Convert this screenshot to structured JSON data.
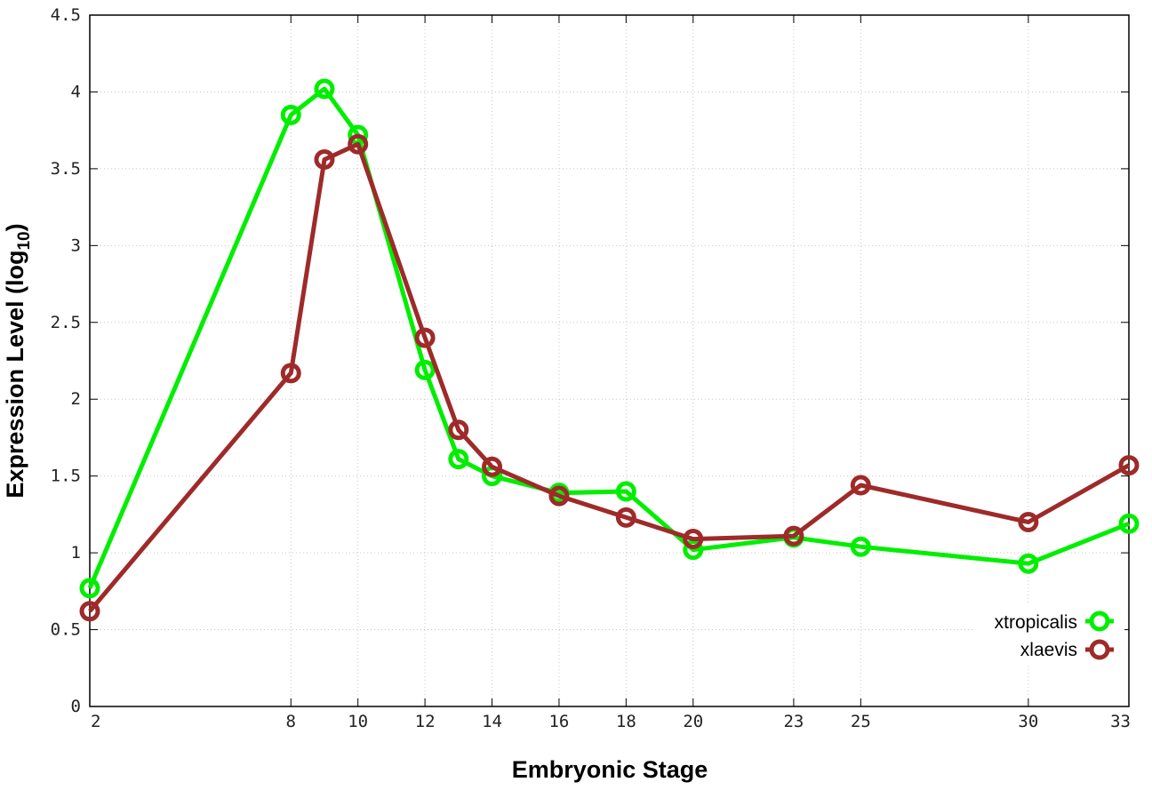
{
  "chart_data": {
    "type": "line",
    "title": "",
    "xlabel": "Embryonic Stage",
    "ylabel": {
      "main": "Expression Level (log",
      "sub": "10",
      "close": ")"
    },
    "xlim": [
      2,
      33
    ],
    "ylim": [
      0,
      4.5
    ],
    "grid": true,
    "legend_position": "bottom-right",
    "x_ticks": [
      "2",
      "8",
      "10",
      "12",
      "14",
      "16",
      "18",
      "20",
      "23",
      "25",
      "30",
      "33"
    ],
    "y_ticks": [
      "0",
      "0.5",
      "1",
      "1.5",
      "2",
      "2.5",
      "3",
      "3.5",
      "4",
      "4.5"
    ],
    "x": [
      2,
      8,
      9,
      10,
      12,
      13,
      14,
      16,
      18,
      20,
      23,
      25,
      30,
      33
    ],
    "series": [
      {
        "name": "xtropicalis",
        "color": "#00ee00",
        "x": [
          2,
          8,
          9,
          10,
          12,
          13,
          14,
          16,
          18,
          20,
          23,
          25,
          30,
          33
        ],
        "values": [
          0.77,
          3.85,
          4.02,
          3.72,
          2.19,
          1.61,
          1.5,
          1.39,
          1.4,
          1.02,
          1.1,
          1.04,
          0.93,
          1.19
        ]
      },
      {
        "name": "xlaevis",
        "color": "#9e2a2a",
        "x": [
          2,
          8,
          9,
          10,
          12,
          13,
          14,
          16,
          18,
          20,
          23,
          25,
          30,
          33
        ],
        "values": [
          0.62,
          2.17,
          3.56,
          3.66,
          2.4,
          1.8,
          1.56,
          1.37,
          1.23,
          1.09,
          1.11,
          1.44,
          1.2,
          1.57
        ]
      }
    ]
  }
}
